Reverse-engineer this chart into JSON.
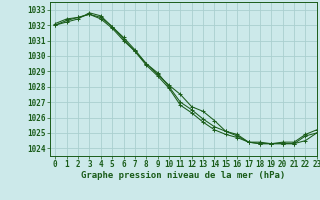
{
  "background_color": "#cce9ea",
  "grid_color": "#aacfcf",
  "line_color": "#1a5c1a",
  "marker_color": "#1a5c1a",
  "title": "Graphe pression niveau de la mer (hPa)",
  "tick_fontsize": 5.5,
  "title_fontsize": 6.5,
  "xlim": [
    -0.5,
    23
  ],
  "ylim": [
    1023.5,
    1033.5
  ],
  "yticks": [
    1024,
    1025,
    1026,
    1027,
    1028,
    1029,
    1030,
    1031,
    1032,
    1033
  ],
  "xticks": [
    0,
    1,
    2,
    3,
    4,
    5,
    6,
    7,
    8,
    9,
    10,
    11,
    12,
    13,
    14,
    15,
    16,
    17,
    18,
    19,
    20,
    21,
    22,
    23
  ],
  "series": [
    [
      1032.1,
      1032.4,
      1032.5,
      1032.7,
      1032.4,
      1031.8,
      1031.0,
      1030.3,
      1029.5,
      1028.8,
      1028.1,
      1027.5,
      1026.7,
      1026.4,
      1025.8,
      1025.1,
      1024.9,
      1024.4,
      1024.3,
      1024.3,
      1024.4,
      1024.4,
      1024.9,
      1025.2
    ],
    [
      1032.0,
      1032.3,
      1032.5,
      1032.7,
      1032.5,
      1031.9,
      1031.2,
      1030.4,
      1029.5,
      1028.9,
      1028.0,
      1027.0,
      1026.5,
      1025.9,
      1025.4,
      1025.1,
      1024.8,
      1024.4,
      1024.4,
      1024.3,
      1024.3,
      1024.3,
      1024.5,
      1025.0
    ],
    [
      1032.0,
      1032.2,
      1032.4,
      1032.8,
      1032.6,
      1031.9,
      1031.1,
      1030.3,
      1029.4,
      1028.7,
      1027.9,
      1026.8,
      1026.3,
      1025.7,
      1025.2,
      1024.9,
      1024.7,
      1024.4,
      1024.3,
      1024.3,
      1024.3,
      1024.3,
      1024.8,
      1025.0
    ]
  ]
}
